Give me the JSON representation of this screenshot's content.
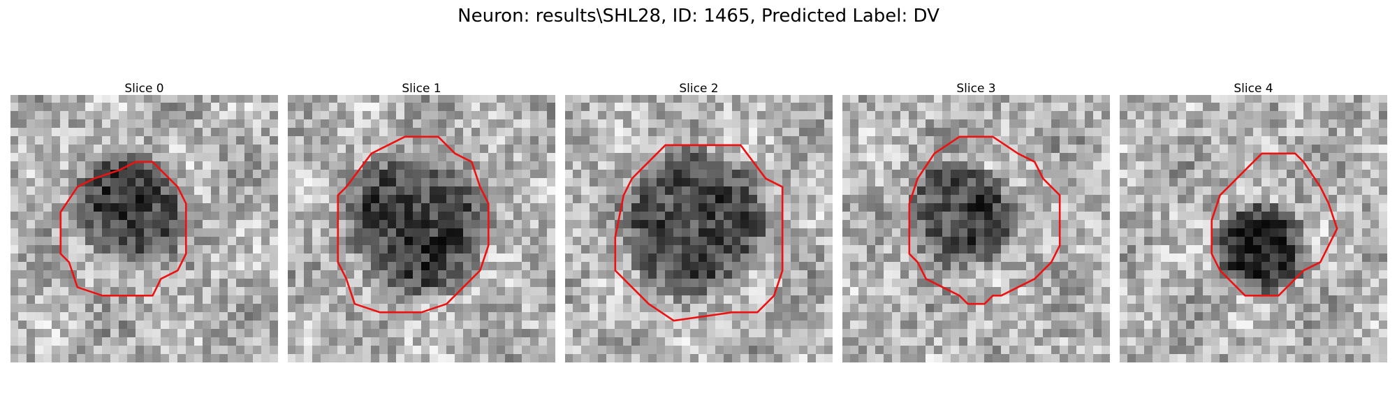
{
  "figure": {
    "title": "Neuron: results\\SHL28, ID: 1465, Predicted Label: DV",
    "contour_color": "#ee1111",
    "colormap": "gray",
    "grid_size": 32,
    "panels": [
      {
        "label": "Slice 0",
        "blob": {
          "cx": 14.5,
          "cy": 13.5,
          "r": 7.5,
          "dark": 0.45
        },
        "contour": [
          [
            15,
            8
          ],
          [
            17,
            8
          ],
          [
            19,
            10
          ],
          [
            20,
            11
          ],
          [
            21,
            13
          ],
          [
            21,
            19
          ],
          [
            20,
            21
          ],
          [
            18,
            22
          ],
          [
            17,
            24
          ],
          [
            11,
            24
          ],
          [
            8,
            23
          ],
          [
            7,
            20
          ],
          [
            6,
            19
          ],
          [
            6,
            14
          ],
          [
            8,
            11
          ],
          [
            10,
            10
          ],
          [
            13,
            9
          ]
        ]
      },
      {
        "label": "Slice 1",
        "blob": {
          "cx": 15.5,
          "cy": 15.5,
          "r": 9.5,
          "dark": 0.45
        },
        "contour": [
          [
            14,
            5
          ],
          [
            18,
            5
          ],
          [
            20,
            7
          ],
          [
            22,
            8
          ],
          [
            23,
            11
          ],
          [
            24,
            13
          ],
          [
            24,
            18
          ],
          [
            23,
            21
          ],
          [
            21,
            23
          ],
          [
            19,
            25
          ],
          [
            16,
            26
          ],
          [
            11,
            26
          ],
          [
            8,
            25
          ],
          [
            7,
            22
          ],
          [
            6,
            20
          ],
          [
            6,
            12
          ],
          [
            7,
            11
          ],
          [
            10,
            7
          ],
          [
            12,
            6
          ]
        ]
      },
      {
        "label": "Slice 2",
        "blob": {
          "cx": 15.5,
          "cy": 15.5,
          "r": 9.5,
          "dark": 0.45
        },
        "contour": [
          [
            12,
            6
          ],
          [
            21,
            6
          ],
          [
            24,
            10
          ],
          [
            26,
            11
          ],
          [
            26,
            21
          ],
          [
            25,
            24
          ],
          [
            23,
            26
          ],
          [
            20,
            26
          ],
          [
            13,
            27
          ],
          [
            10,
            25
          ],
          [
            8,
            23
          ],
          [
            6,
            21
          ],
          [
            6,
            17
          ],
          [
            7,
            12
          ],
          [
            8,
            10
          ],
          [
            9,
            9
          ]
        ]
      },
      {
        "label": "Slice 3",
        "blob": {
          "cx": 14,
          "cy": 14.5,
          "r": 7,
          "dark": 0.45
        },
        "contour": [
          [
            14,
            5
          ],
          [
            18,
            5
          ],
          [
            21,
            7
          ],
          [
            23,
            8
          ],
          [
            24,
            10
          ],
          [
            26,
            12
          ],
          [
            26,
            18
          ],
          [
            25,
            20
          ],
          [
            23,
            22
          ],
          [
            21,
            23
          ],
          [
            19,
            24
          ],
          [
            18,
            24
          ],
          [
            17,
            25
          ],
          [
            15,
            25
          ],
          [
            14,
            24
          ],
          [
            12,
            23
          ],
          [
            10,
            22
          ],
          [
            9,
            20
          ],
          [
            8,
            19
          ],
          [
            8,
            13
          ],
          [
            9,
            10
          ],
          [
            11,
            7
          ]
        ]
      },
      {
        "label": "Slice 4",
        "blob": {
          "cx": 17,
          "cy": 18.5,
          "r": 6,
          "dark": 0.55
        },
        "contour": [
          [
            17,
            7
          ],
          [
            21,
            7
          ],
          [
            22,
            8
          ],
          [
            24,
            11
          ],
          [
            25,
            13
          ],
          [
            26,
            16
          ],
          [
            25,
            18
          ],
          [
            24,
            20
          ],
          [
            22,
            21
          ],
          [
            20,
            23
          ],
          [
            19,
            24
          ],
          [
            15,
            24
          ],
          [
            14,
            23
          ],
          [
            12,
            21
          ],
          [
            11,
            19
          ],
          [
            11,
            15
          ],
          [
            12,
            12
          ],
          [
            13,
            11
          ],
          [
            15,
            9
          ]
        ]
      }
    ]
  }
}
